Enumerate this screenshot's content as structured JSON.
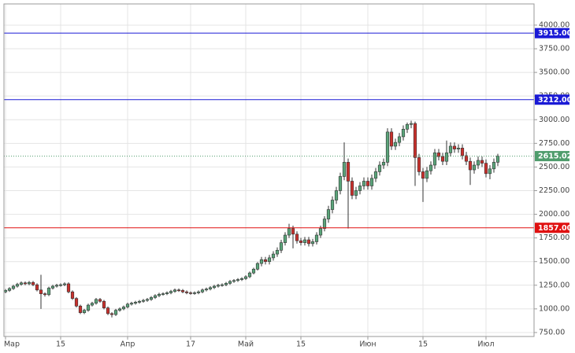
{
  "chart_data": {
    "type": "candlestick",
    "up_color": "#5aa57a",
    "down_color": "#c9302c",
    "ylim": [
      708,
      4224
    ],
    "yticks": [
      {
        "value": 750,
        "label": "750.00"
      },
      {
        "value": 1000,
        "label": "1000.00"
      },
      {
        "value": 1250,
        "label": "1250.00"
      },
      {
        "value": 1500,
        "label": "1500.00"
      },
      {
        "value": 1750,
        "label": "1750.00"
      },
      {
        "value": 2000,
        "label": "2000.00"
      },
      {
        "value": 2250,
        "label": "2250.00"
      },
      {
        "value": 2500,
        "label": "2500.00"
      },
      {
        "value": 2750,
        "label": "2750.00"
      },
      {
        "value": 3000,
        "label": "3000.00"
      },
      {
        "value": 3250,
        "label": "3250.00"
      },
      {
        "value": 3500,
        "label": "3500.00"
      },
      {
        "value": 3750,
        "label": "3750.00"
      },
      {
        "value": 4000,
        "label": "4000.00"
      }
    ],
    "grid": true,
    "levels": [
      {
        "value": 3915,
        "label": "3915.00",
        "color": "#1a1ad6",
        "style": "solid"
      },
      {
        "value": 3212,
        "label": "3212.00",
        "color": "#1a1ad6",
        "style": "solid"
      },
      {
        "value": 1857,
        "label": "1857.00",
        "color": "#e01010",
        "style": "solid"
      },
      {
        "value": 2615.02,
        "label": "2615.02",
        "color": "#4f9c6c",
        "style": "dotted"
      }
    ],
    "categories": [
      "Мар",
      null,
      null,
      null,
      null,
      null,
      null,
      null,
      null,
      null,
      null,
      null,
      null,
      null,
      "15",
      null,
      null,
      null,
      null,
      null,
      null,
      null,
      null,
      null,
      null,
      null,
      null,
      null,
      null,
      null,
      null,
      "Апр",
      null,
      null,
      null,
      null,
      null,
      null,
      null,
      null,
      null,
      null,
      null,
      null,
      null,
      null,
      null,
      "17",
      null,
      null,
      null,
      null,
      null,
      null,
      null,
      null,
      null,
      null,
      null,
      null,
      null,
      "Май",
      null,
      null,
      null,
      null,
      null,
      null,
      null,
      null,
      null,
      null,
      null,
      null,
      null,
      "15",
      null,
      null,
      null,
      null,
      null,
      null,
      null,
      null,
      null,
      null,
      null,
      null,
      null,
      null,
      null,
      null,
      "Июн",
      null,
      null,
      null,
      null,
      null,
      null,
      null,
      null,
      null,
      null,
      null,
      null,
      null,
      "15",
      null,
      null,
      null,
      null,
      null,
      null,
      null,
      null,
      null,
      null,
      null,
      null,
      null,
      null,
      null,
      "Июл",
      null,
      null,
      null
    ],
    "open": [
      1180,
      1195,
      1215,
      1240,
      1260,
      1275,
      1265,
      1280,
      1255,
      1200,
      1160,
      1150,
      1220,
      1240,
      1250,
      1255,
      1265,
      1180,
      1110,
      1030,
      960,
      985,
      1040,
      1060,
      1100,
      1080,
      1010,
      950,
      940,
      985,
      1000,
      1020,
      1050,
      1060,
      1070,
      1080,
      1090,
      1100,
      1120,
      1140,
      1155,
      1160,
      1170,
      1185,
      1200,
      1195,
      1180,
      1170,
      1165,
      1170,
      1180,
      1200,
      1210,
      1225,
      1240,
      1250,
      1255,
      1270,
      1290,
      1300,
      1310,
      1320,
      1340,
      1380,
      1420,
      1480,
      1520,
      1500,
      1540,
      1580,
      1620,
      1700,
      1780,
      1850,
      1790,
      1720,
      1700,
      1730,
      1690,
      1710,
      1780,
      1850,
      1950,
      2050,
      2150,
      2250,
      2400,
      2550,
      2350,
      2200,
      2250,
      2300,
      2350,
      2300,
      2380,
      2450,
      2520,
      2550,
      2870,
      2720,
      2760,
      2820,
      2900,
      2950,
      2960,
      2600,
      2450,
      2380,
      2460,
      2520,
      2650,
      2610,
      2560,
      2650,
      2720,
      2690,
      2700,
      2620,
      2560,
      2470,
      2520,
      2570,
      2540,
      2430,
      2480,
      2550
    ],
    "high": [
      1210,
      1230,
      1255,
      1275,
      1290,
      1290,
      1295,
      1295,
      1270,
      1360,
      1175,
      1235,
      1255,
      1265,
      1270,
      1280,
      1280,
      1195,
      1125,
      1045,
      1000,
      1055,
      1075,
      1115,
      1115,
      1095,
      1025,
      965,
      1000,
      1015,
      1035,
      1065,
      1075,
      1085,
      1095,
      1105,
      1115,
      1135,
      1155,
      1170,
      1175,
      1185,
      1200,
      1215,
      1215,
      1210,
      1195,
      1185,
      1185,
      1195,
      1215,
      1225,
      1240,
      1255,
      1265,
      1270,
      1285,
      1305,
      1315,
      1325,
      1335,
      1355,
      1395,
      1435,
      1495,
      1550,
      1550,
      1570,
      1610,
      1650,
      1730,
      1810,
      1900,
      1880,
      1820,
      1750,
      1760,
      1760,
      1740,
      1810,
      1880,
      1980,
      2090,
      2190,
      2290,
      2440,
      2760,
      2590,
      2390,
      2290,
      2340,
      2390,
      2390,
      2420,
      2490,
      2560,
      2590,
      2910,
      2910,
      2800,
      2860,
      2940,
      2970,
      2990,
      2980,
      2640,
      2490,
      2500,
      2560,
      2690,
      2690,
      2650,
      2780,
      2760,
      2760,
      2740,
      2740,
      2660,
      2600,
      2560,
      2610,
      2610,
      2580,
      2520,
      2590,
      2640
    ],
    "low": [
      1165,
      1180,
      1200,
      1225,
      1245,
      1250,
      1250,
      1240,
      1185,
      1000,
      1130,
      1135,
      1205,
      1225,
      1235,
      1240,
      1165,
      1095,
      1015,
      945,
      945,
      970,
      1025,
      1045,
      1065,
      995,
      935,
      910,
      925,
      970,
      985,
      1005,
      1035,
      1045,
      1055,
      1065,
      1075,
      1085,
      1105,
      1125,
      1140,
      1145,
      1155,
      1170,
      1180,
      1165,
      1155,
      1150,
      1150,
      1155,
      1165,
      1185,
      1195,
      1210,
      1225,
      1235,
      1240,
      1255,
      1275,
      1285,
      1295,
      1305,
      1325,
      1365,
      1405,
      1450,
      1470,
      1470,
      1510,
      1550,
      1590,
      1670,
      1750,
      1640,
      1690,
      1670,
      1670,
      1660,
      1660,
      1680,
      1750,
      1820,
      1910,
      2010,
      2110,
      2210,
      2360,
      1850,
      2160,
      2160,
      2210,
      2260,
      2260,
      2260,
      2340,
      2410,
      2480,
      2510,
      2680,
      2680,
      2720,
      2780,
      2860,
      2910,
      2300,
      2410,
      2130,
      2340,
      2420,
      2480,
      2570,
      2520,
      2520,
      2610,
      2650,
      2650,
      2580,
      2520,
      2310,
      2430,
      2480,
      2500,
      2390,
      2370,
      2440,
      2510
    ],
    "close": [
      1195,
      1215,
      1240,
      1260,
      1275,
      1265,
      1280,
      1255,
      1200,
      1160,
      1150,
      1220,
      1240,
      1250,
      1255,
      1265,
      1180,
      1110,
      1030,
      960,
      985,
      1040,
      1060,
      1100,
      1080,
      1010,
      950,
      940,
      985,
      1000,
      1020,
      1050,
      1060,
      1070,
      1080,
      1090,
      1100,
      1120,
      1140,
      1155,
      1160,
      1170,
      1185,
      1200,
      1195,
      1180,
      1170,
      1165,
      1170,
      1180,
      1200,
      1210,
      1225,
      1240,
      1250,
      1255,
      1270,
      1290,
      1300,
      1310,
      1320,
      1340,
      1380,
      1420,
      1480,
      1520,
      1500,
      1540,
      1580,
      1620,
      1700,
      1780,
      1850,
      1790,
      1720,
      1700,
      1730,
      1690,
      1710,
      1780,
      1850,
      1950,
      2050,
      2150,
      2250,
      2400,
      2550,
      2350,
      2200,
      2250,
      2300,
      2350,
      2300,
      2380,
      2450,
      2520,
      2550,
      2870,
      2720,
      2760,
      2820,
      2900,
      2950,
      2960,
      2600,
      2450,
      2380,
      2460,
      2520,
      2650,
      2610,
      2560,
      2650,
      2720,
      2690,
      2700,
      2620,
      2560,
      2470,
      2520,
      2570,
      2540,
      2430,
      2480,
      2550,
      2615.02
    ]
  }
}
